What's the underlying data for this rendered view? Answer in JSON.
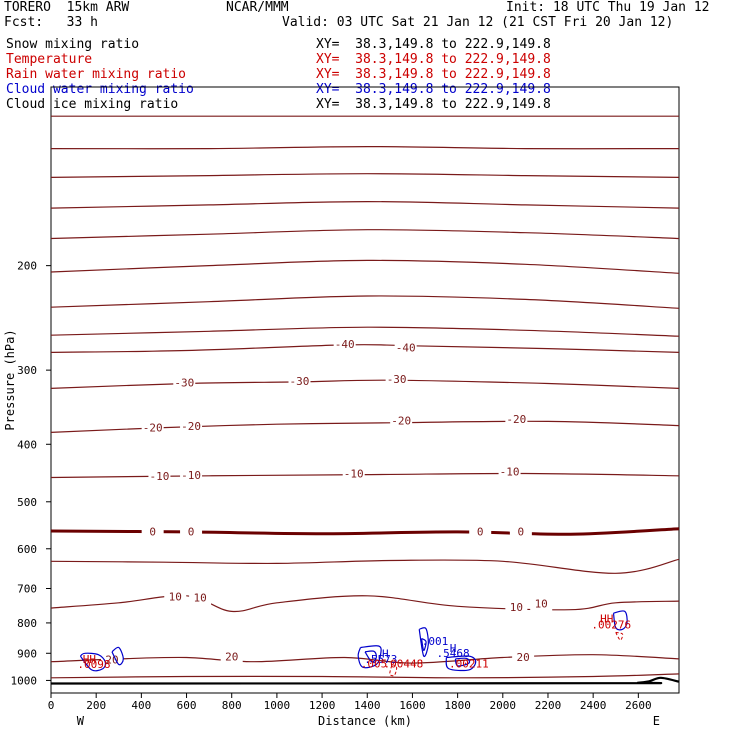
{
  "header": {
    "model": "TORERO  15km ARW",
    "center": "NCAR/MMM",
    "init": "Init: 18 UTC Thu 19 Jan 12",
    "fcst": "Fcst:   33 h",
    "valid": "Valid: 03 UTC Sat 21 Jan 12 (21 CST Fri 20 Jan 12)"
  },
  "fields": [
    {
      "name": "Snow mixing ratio",
      "xy": "XY=  38.3,149.8 to 222.9,149.8",
      "color": "#000000"
    },
    {
      "name": "Temperature",
      "xy": "XY=  38.3,149.8 to 222.9,149.8",
      "color": "#cc0000"
    },
    {
      "name": "Rain water mixing ratio",
      "xy": "XY=  38.3,149.8 to 222.9,149.8",
      "color": "#cc0000"
    },
    {
      "name": "Cloud water mixing ratio",
      "xy": "XY=  38.3,149.8 to 222.9,149.8",
      "color": "#0000cc"
    },
    {
      "name": "Cloud ice mixing ratio",
      "xy": "XY=  38.3,149.8 to 222.9,149.8",
      "color": "#000000"
    }
  ],
  "chart_data": {
    "type": "contour cross-section",
    "xlabel": "Distance (km)",
    "ylabel": "Pressure (hPa)",
    "xlim": [
      0,
      2780
    ],
    "ylim": [
      1050,
      100
    ],
    "x_ticks": [
      0,
      200,
      400,
      600,
      800,
      1000,
      1200,
      1400,
      1600,
      1800,
      2000,
      2200,
      2400,
      2600
    ],
    "y_ticks": [
      200,
      300,
      400,
      500,
      600,
      700,
      800,
      900,
      1000
    ],
    "y_scale": "log",
    "x_ends": {
      "left": "W",
      "right": "E"
    },
    "colors": {
      "temperature": "#7a1a1a",
      "temperature_zero": "#6a0000",
      "cloud": "#0000cc",
      "rain": "#cc0000",
      "terrain": "#000000"
    },
    "temperature_contours": [
      {
        "x": [
          0,
          700,
          1400,
          2100,
          2780
        ],
        "p": [
          112,
          112,
          112,
          112,
          112
        ]
      },
      {
        "x": [
          0,
          700,
          1400,
          2100,
          2780
        ],
        "p": [
          127,
          127,
          126,
          127,
          127
        ]
      },
      {
        "x": [
          0,
          700,
          1400,
          2100,
          2780
        ],
        "p": [
          142,
          141,
          140,
          141,
          142
        ]
      },
      {
        "x": [
          0,
          700,
          1400,
          2100,
          2780
        ],
        "p": [
          160,
          158,
          156,
          158,
          160
        ]
      },
      {
        "x": [
          0,
          700,
          1400,
          2100,
          2780
        ],
        "p": [
          180,
          177,
          174,
          176,
          180
        ]
      },
      {
        "x": [
          0,
          700,
          1400,
          2100,
          2780
        ],
        "p": [
          205,
          200,
          196,
          199,
          206
        ]
      },
      {
        "x": [
          0,
          700,
          1400,
          2100,
          2780
        ],
        "p": [
          235,
          230,
          225,
          228,
          236
        ]
      },
      {
        "x": [
          0,
          700,
          1400,
          2100,
          2780
        ],
        "p": [
          262,
          258,
          254,
          257,
          263
        ]
      },
      {
        "value": -40,
        "x": [
          0,
          600,
          1300,
          1600,
          2200,
          2780
        ],
        "p": [
          280,
          278,
          272,
          273,
          276,
          280
        ]
      },
      {
        "value": -30,
        "x": [
          0,
          600,
          1100,
          1500,
          2200,
          2780
        ],
        "p": [
          322,
          316,
          314,
          312,
          316,
          322
        ]
      },
      {
        "value": -20,
        "x": [
          0,
          500,
          1000,
          1500,
          2200,
          2780
        ],
        "p": [
          382,
          375,
          370,
          368,
          366,
          372
        ]
      },
      {
        "value": -10,
        "x": [
          0,
          700,
          1400,
          2100,
          2780
        ],
        "p": [
          455,
          452,
          450,
          448,
          452
        ]
      },
      {
        "value": 0,
        "x": [
          0,
          600,
          1200,
          1800,
          2300,
          2780
        ],
        "p": [
          560,
          562,
          566,
          562,
          567,
          555
        ]
      },
      {
        "x": [
          0,
          500,
          1000,
          1500,
          2000,
          2500,
          2780
        ],
        "p": [
          630,
          632,
          635,
          628,
          630,
          660,
          625
        ]
      },
      {
        "value": 10,
        "x": [
          0,
          300,
          600,
          800,
          1000,
          1400,
          1800,
          2300,
          2500,
          2780
        ],
        "p": [
          755,
          740,
          720,
          765,
          740,
          720,
          750,
          760,
          740,
          735
        ]
      },
      {
        "value": 20,
        "x": [
          0,
          300,
          600,
          900,
          1300,
          1600,
          2000,
          2400,
          2780
        ],
        "p": [
          930,
          920,
          915,
          930,
          915,
          935,
          915,
          905,
          920
        ]
      },
      {
        "x": [
          0,
          600,
          1200,
          1800,
          2400,
          2780
        ],
        "p": [
          990,
          985,
          985,
          990,
          985,
          975
        ]
      }
    ],
    "temperature_labels": [
      {
        "text": "-40",
        "x": 1300,
        "p": 272
      },
      {
        "text": "-40",
        "x": 1570,
        "p": 276
      },
      {
        "text": "-30",
        "x": 590,
        "p": 316
      },
      {
        "text": "-30",
        "x": 1100,
        "p": 314
      },
      {
        "text": "-30",
        "x": 1530,
        "p": 312
      },
      {
        "text": "-20",
        "x": 450,
        "p": 376
      },
      {
        "text": "-20",
        "x": 620,
        "p": 374
      },
      {
        "text": "-20",
        "x": 1550,
        "p": 366
      },
      {
        "text": "-20",
        "x": 2060,
        "p": 364
      },
      {
        "text": "-10",
        "x": 480,
        "p": 454
      },
      {
        "text": "-10",
        "x": 620,
        "p": 452
      },
      {
        "text": "-10",
        "x": 1340,
        "p": 450
      },
      {
        "text": "-10",
        "x": 2030,
        "p": 446
      },
      {
        "text": "0",
        "x": 450,
        "p": 563
      },
      {
        "text": "0",
        "x": 620,
        "p": 563
      },
      {
        "text": "0",
        "x": 1900,
        "p": 563
      },
      {
        "text": "0",
        "x": 2080,
        "p": 563
      },
      {
        "text": "10",
        "x": 550,
        "p": 725
      },
      {
        "text": "10",
        "x": 660,
        "p": 728
      },
      {
        "text": "10",
        "x": 2060,
        "p": 755
      },
      {
        "text": "10",
        "x": 2170,
        "p": 745
      },
      {
        "text": "20",
        "x": 270,
        "p": 925
      },
      {
        "text": "20",
        "x": 800,
        "p": 915
      },
      {
        "text": "20",
        "x": 2090,
        "p": 917
      }
    ],
    "cloud_contours": [
      {
        "x": [
          130,
          150,
          210,
          240,
          230,
          180,
          130
        ],
        "p": [
          910,
          900,
          905,
          930,
          955,
          960,
          910
        ]
      },
      {
        "x": [
          270,
          300,
          320,
          300,
          270
        ],
        "p": [
          895,
          880,
          920,
          940,
          895
        ]
      },
      {
        "x": [
          1370,
          1450,
          1460,
          1440,
          1380,
          1360,
          1370
        ],
        "p": [
          880,
          875,
          900,
          940,
          950,
          910,
          880
        ]
      },
      {
        "x": [
          1390,
          1430,
          1440,
          1420,
          1390
        ],
        "p": [
          895,
          893,
          915,
          930,
          895
        ]
      },
      {
        "x": [
          1630,
          1660,
          1670,
          1650,
          1630
        ],
        "p": [
          820,
          818,
          870,
          910,
          820
        ]
      },
      {
        "x": [
          1640,
          1660,
          1650,
          1640
        ],
        "p": [
          850,
          860,
          890,
          850
        ]
      },
      {
        "x": [
          1750,
          1850,
          1880,
          1850,
          1760,
          1750
        ],
        "p": [
          915,
          910,
          930,
          960,
          955,
          915
        ]
      },
      {
        "x": [
          1790,
          1840,
          1850,
          1800,
          1790
        ],
        "p": [
          920,
          918,
          935,
          945,
          920
        ]
      },
      {
        "x": [
          2490,
          2540,
          2550,
          2530,
          2500,
          2490
        ],
        "p": [
          770,
          765,
          800,
          820,
          815,
          770
        ]
      }
    ],
    "cloud_labels": [
      {
        "text": "H",
        "x": 1480,
        "p": 905
      },
      {
        "text": ".5573",
        "x": 1460,
        "p": 923
      },
      {
        "text": ".001",
        "x": 1700,
        "p": 862
      },
      {
        "text": "H",
        "x": 1780,
        "p": 885
      },
      {
        "text": ".5468",
        "x": 1780,
        "p": 902
      }
    ],
    "rain_contours": [
      {
        "x": [
          1510,
          1530,
          1520,
          1500,
          1510
        ],
        "p": [
          940,
          950,
          980,
          975,
          940
        ]
      },
      {
        "x": [
          2500,
          2530,
          2520,
          2500
        ],
        "p": [
          830,
          835,
          855,
          830
        ]
      }
    ],
    "rain_labels": [
      {
        "text": "HH",
        "x": 2460,
        "p": 790
      },
      {
        "text": ".00276",
        "x": 2480,
        "p": 808
      },
      {
        "text": "HH",
        "x": 170,
        "p": 924
      },
      {
        "text": ".0098",
        "x": 190,
        "p": 941
      },
      {
        "text": ".005",
        "x": 1430,
        "p": 940
      },
      {
        "text": ".00448",
        "x": 1560,
        "p": 940
      },
      {
        "text": ".00211",
        "x": 1850,
        "p": 940
      }
    ],
    "terrain": {
      "x": [
        0,
        2480,
        2600,
        2650,
        2700,
        2780
      ],
      "p": [
        1012,
        1011,
        1009,
        1003,
        990,
        1005
      ]
    }
  }
}
